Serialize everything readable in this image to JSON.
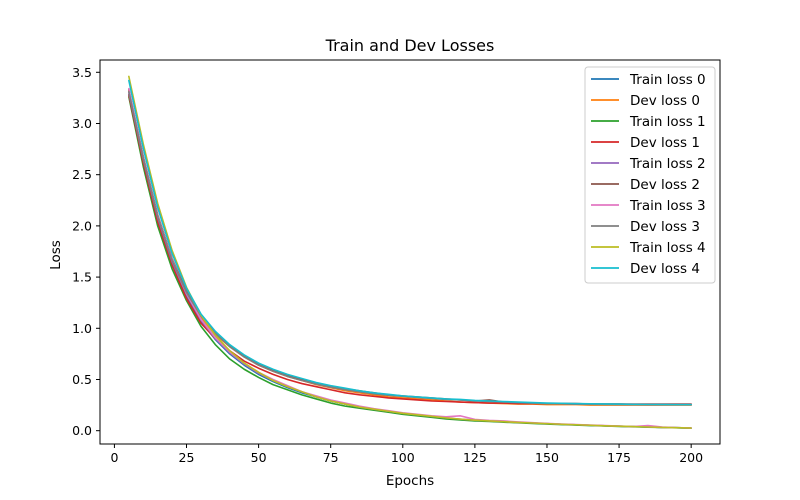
{
  "chart_data": {
    "type": "line",
    "title": "Train and Dev Losses",
    "xlabel": "Epochs",
    "ylabel": "Loss",
    "xlim": [
      -5,
      210
    ],
    "ylim": [
      -0.13,
      3.62
    ],
    "xticks": [
      0,
      25,
      50,
      75,
      100,
      125,
      150,
      175,
      200
    ],
    "yticks": [
      0.0,
      0.5,
      1.0,
      1.5,
      2.0,
      2.5,
      3.0,
      3.5
    ],
    "grid": false,
    "legend_position": "top-right",
    "x": [
      5,
      10,
      15,
      20,
      25,
      30,
      35,
      40,
      45,
      50,
      55,
      60,
      65,
      70,
      75,
      80,
      85,
      90,
      95,
      100,
      105,
      110,
      115,
      120,
      125,
      130,
      135,
      140,
      145,
      150,
      155,
      160,
      165,
      170,
      175,
      180,
      185,
      190,
      195,
      200
    ],
    "series": [
      {
        "name": "Train loss 0",
        "color": "#1f77b4",
        "values": [
          3.28,
          2.62,
          2.05,
          1.62,
          1.3,
          1.07,
          0.89,
          0.75,
          0.64,
          0.55,
          0.48,
          0.42,
          0.37,
          0.33,
          0.29,
          0.26,
          0.23,
          0.21,
          0.19,
          0.17,
          0.15,
          0.14,
          0.12,
          0.11,
          0.1,
          0.095,
          0.088,
          0.08,
          0.074,
          0.068,
          0.062,
          0.057,
          0.052,
          0.048,
          0.044,
          0.04,
          0.036,
          0.032,
          0.029,
          0.026
        ]
      },
      {
        "name": "Dev loss 0",
        "color": "#ff7f0e",
        "values": [
          3.32,
          2.66,
          2.1,
          1.67,
          1.34,
          1.1,
          0.94,
          0.82,
          0.72,
          0.64,
          0.58,
          0.53,
          0.49,
          0.45,
          0.42,
          0.39,
          0.37,
          0.35,
          0.33,
          0.32,
          0.31,
          0.3,
          0.29,
          0.28,
          0.275,
          0.27,
          0.265,
          0.26,
          0.26,
          0.255,
          0.255,
          0.255,
          0.25,
          0.25,
          0.25,
          0.25,
          0.25,
          0.25,
          0.25,
          0.25
        ]
      },
      {
        "name": "Train loss 1",
        "color": "#2ca02c",
        "values": [
          3.26,
          2.58,
          2.0,
          1.58,
          1.27,
          1.02,
          0.84,
          0.7,
          0.6,
          0.52,
          0.45,
          0.4,
          0.35,
          0.31,
          0.27,
          0.24,
          0.22,
          0.2,
          0.18,
          0.16,
          0.145,
          0.13,
          0.115,
          0.105,
          0.095,
          0.09,
          0.083,
          0.077,
          0.071,
          0.065,
          0.06,
          0.055,
          0.05,
          0.046,
          0.042,
          0.038,
          0.034,
          0.031,
          0.028,
          0.025
        ]
      },
      {
        "name": "Dev loss 1",
        "color": "#d62728",
        "values": [
          3.28,
          2.62,
          2.04,
          1.62,
          1.29,
          1.05,
          0.9,
          0.78,
          0.68,
          0.61,
          0.55,
          0.5,
          0.46,
          0.43,
          0.4,
          0.37,
          0.35,
          0.335,
          0.32,
          0.31,
          0.3,
          0.29,
          0.285,
          0.28,
          0.275,
          0.27,
          0.27,
          0.265,
          0.265,
          0.265,
          0.265,
          0.265,
          0.26,
          0.26,
          0.26,
          0.26,
          0.26,
          0.26,
          0.26,
          0.26
        ]
      },
      {
        "name": "Train loss 2",
        "color": "#9467bd",
        "values": [
          3.3,
          2.65,
          2.08,
          1.65,
          1.33,
          1.08,
          0.9,
          0.76,
          0.65,
          0.56,
          0.49,
          0.43,
          0.38,
          0.33,
          0.29,
          0.26,
          0.23,
          0.21,
          0.19,
          0.17,
          0.155,
          0.14,
          0.125,
          0.113,
          0.103,
          0.095,
          0.088,
          0.081,
          0.075,
          0.069,
          0.063,
          0.058,
          0.053,
          0.048,
          0.044,
          0.04,
          0.036,
          0.032,
          0.029,
          0.026
        ]
      },
      {
        "name": "Dev loss 2",
        "color": "#8c564b",
        "values": [
          3.33,
          2.68,
          2.11,
          1.68,
          1.36,
          1.12,
          0.96,
          0.83,
          0.73,
          0.65,
          0.59,
          0.54,
          0.5,
          0.46,
          0.43,
          0.41,
          0.39,
          0.37,
          0.35,
          0.34,
          0.33,
          0.32,
          0.31,
          0.3,
          0.29,
          0.3,
          0.28,
          0.275,
          0.27,
          0.265,
          0.265,
          0.26,
          0.26,
          0.26,
          0.26,
          0.255,
          0.255,
          0.255,
          0.255,
          0.255
        ]
      },
      {
        "name": "Train loss 3",
        "color": "#e377c2",
        "values": [
          3.34,
          2.67,
          2.1,
          1.67,
          1.34,
          1.09,
          0.91,
          0.77,
          0.66,
          0.57,
          0.5,
          0.44,
          0.38,
          0.34,
          0.3,
          0.27,
          0.24,
          0.215,
          0.195,
          0.175,
          0.16,
          0.145,
          0.135,
          0.145,
          0.11,
          0.1,
          0.095,
          0.085,
          0.078,
          0.071,
          0.065,
          0.06,
          0.055,
          0.05,
          0.045,
          0.041,
          0.05,
          0.035,
          0.03,
          0.027
        ]
      },
      {
        "name": "Dev loss 3",
        "color": "#7f7f7f",
        "values": [
          3.31,
          2.66,
          2.09,
          1.66,
          1.35,
          1.12,
          0.95,
          0.82,
          0.72,
          0.64,
          0.58,
          0.53,
          0.49,
          0.455,
          0.425,
          0.4,
          0.38,
          0.36,
          0.345,
          0.335,
          0.325,
          0.315,
          0.305,
          0.3,
          0.29,
          0.285,
          0.28,
          0.275,
          0.27,
          0.265,
          0.262,
          0.26,
          0.258,
          0.256,
          0.255,
          0.254,
          0.253,
          0.252,
          0.252,
          0.252
        ]
      },
      {
        "name": "Train loss 4",
        "color": "#bcbd22",
        "values": [
          3.46,
          2.8,
          2.22,
          1.76,
          1.4,
          1.13,
          0.93,
          0.78,
          0.66,
          0.57,
          0.49,
          0.43,
          0.38,
          0.33,
          0.29,
          0.26,
          0.23,
          0.21,
          0.19,
          0.17,
          0.155,
          0.14,
          0.125,
          0.113,
          0.103,
          0.095,
          0.088,
          0.081,
          0.075,
          0.069,
          0.063,
          0.058,
          0.053,
          0.048,
          0.044,
          0.04,
          0.036,
          0.032,
          0.029,
          0.026
        ]
      },
      {
        "name": "Dev loss 4",
        "color": "#17becf",
        "values": [
          3.42,
          2.76,
          2.18,
          1.73,
          1.39,
          1.14,
          0.97,
          0.84,
          0.74,
          0.66,
          0.6,
          0.55,
          0.51,
          0.47,
          0.44,
          0.415,
          0.39,
          0.37,
          0.355,
          0.34,
          0.33,
          0.32,
          0.31,
          0.305,
          0.295,
          0.29,
          0.285,
          0.28,
          0.275,
          0.27,
          0.268,
          0.265,
          0.263,
          0.261,
          0.26,
          0.258,
          0.257,
          0.256,
          0.255,
          0.255
        ]
      }
    ]
  }
}
